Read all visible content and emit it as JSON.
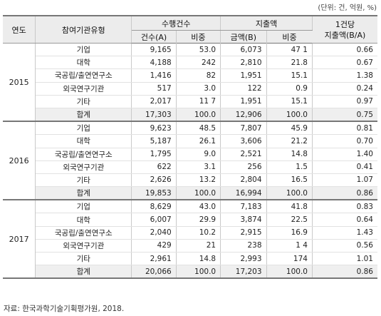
{
  "unit_note": "(단위: 건, 억원, %)",
  "headers": {
    "year": "연도",
    "type": "참여기관유형",
    "count_group": "수행건수",
    "spend_group": "지출액",
    "per_case": "1건당\n지출액(B/A)",
    "count": "건수(A)",
    "count_share": "비중",
    "amount": "금액(B)",
    "amount_share": "비중"
  },
  "groups": [
    {
      "year": "2015",
      "rows": [
        {
          "type": "기업",
          "count": "9,165",
          "count_share": "53.0",
          "amount": "6,073",
          "amount_share": "47 1",
          "per_case": "0.66"
        },
        {
          "type": "대학",
          "count": "4,188",
          "count_share": "242",
          "amount": "2,810",
          "amount_share": "21.8",
          "per_case": "0.67"
        },
        {
          "type": "국공립/출연연구소",
          "count": "1,416",
          "count_share": "82",
          "amount": "1,951",
          "amount_share": "15.1",
          "per_case": "1.38"
        },
        {
          "type": "외국연구기관",
          "count": "517",
          "count_share": "3.0",
          "amount": "122",
          "amount_share": "0.9",
          "per_case": "0.24"
        },
        {
          "type": "기타",
          "count": "2,017",
          "count_share": "11 7",
          "amount": "1,951",
          "amount_share": "15.1",
          "per_case": "0.97"
        },
        {
          "type": "합계",
          "count": "17,303",
          "count_share": "100.0",
          "amount": "12,906",
          "amount_share": "100.0",
          "per_case": "0.75"
        }
      ]
    },
    {
      "year": "2016",
      "rows": [
        {
          "type": "기업",
          "count": "9,623",
          "count_share": "48.5",
          "amount": "7,807",
          "amount_share": "45.9",
          "per_case": "0.81"
        },
        {
          "type": "대학",
          "count": "5,187",
          "count_share": "26.1",
          "amount": "3,606",
          "amount_share": "21.2",
          "per_case": "0.70"
        },
        {
          "type": "국공립/출연연구소",
          "count": "1,795",
          "count_share": "9.0",
          "amount": "2,521",
          "amount_share": "14.8",
          "per_case": "1.40"
        },
        {
          "type": "외국연구기관",
          "count": "622",
          "count_share": "3.1",
          "amount": "256",
          "amount_share": "1.5",
          "per_case": "0.41"
        },
        {
          "type": "기타",
          "count": "2,626",
          "count_share": "13.2",
          "amount": "2,804",
          "amount_share": "16.5",
          "per_case": "1.07"
        },
        {
          "type": "합계",
          "count": "19,853",
          "count_share": "100.0",
          "amount": "16,994",
          "amount_share": "100.0",
          "per_case": "0.86"
        }
      ]
    },
    {
      "year": "2017",
      "rows": [
        {
          "type": "기업",
          "count": "8,629",
          "count_share": "43.0",
          "amount": "7,183",
          "amount_share": "41.8",
          "per_case": "0.83"
        },
        {
          "type": "대학",
          "count": "6,007",
          "count_share": "29.9",
          "amount": "3,874",
          "amount_share": "22.5",
          "per_case": "0.64"
        },
        {
          "type": "국공립/출연연구소",
          "count": "2,040",
          "count_share": "10.2",
          "amount": "2,915",
          "amount_share": "16.9",
          "per_case": "1.43"
        },
        {
          "type": "외국연구기관",
          "count": "429",
          "count_share": "21",
          "amount": "238",
          "amount_share": "1 4",
          "per_case": "0.56"
        },
        {
          "type": "기타",
          "count": "2,961",
          "count_share": "14.8",
          "amount": "2,993",
          "amount_share": "174",
          "per_case": "1.01"
        },
        {
          "type": "합계",
          "count": "20,066",
          "count_share": "100.0",
          "amount": "17,203",
          "amount_share": "100.0",
          "per_case": "0.86"
        }
      ]
    }
  ],
  "source": "자료: 한국과학기술기획평가원, 2018."
}
